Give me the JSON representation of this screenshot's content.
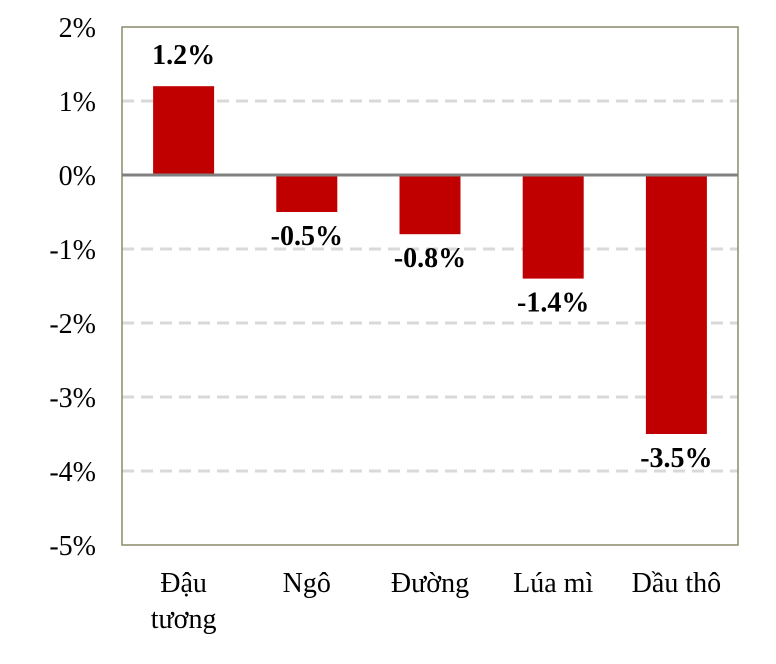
{
  "chart_data": {
    "type": "bar",
    "categories": [
      "Đậu tương",
      "Ngô",
      "Đường",
      "Lúa mì",
      "Dầu thô"
    ],
    "values": [
      1.2,
      -0.5,
      -0.8,
      -1.4,
      -3.5
    ],
    "data_labels": [
      "1.2%",
      "-0.5%",
      "-0.8%",
      "-1.4%",
      "-3.5%"
    ],
    "ylim": [
      -5,
      2
    ],
    "y_ticks": [
      2,
      1,
      0,
      -1,
      -2,
      -3,
      -4,
      -5
    ],
    "y_tick_labels": [
      "2%",
      "1%",
      "0%",
      "-1%",
      "-2%",
      "-3%",
      "-4%",
      "-5%"
    ],
    "grid": true,
    "title": "",
    "xlabel": "",
    "ylabel": "",
    "colors": {
      "bar": "#C00000",
      "grid": "#D9D9D9",
      "zero_line": "#808080",
      "frame": "#8B8B6B"
    }
  }
}
